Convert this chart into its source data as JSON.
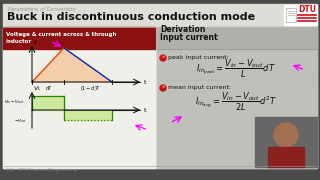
{
  "title": "Buck in discontinuous conduction mode",
  "subtitle": "Parameters of Converters",
  "outer_bg": "#4a4a4a",
  "slide_bg": "#deded8",
  "left_panel_bg": "#f0f0eb",
  "red_header_bg": "#8b1010",
  "red_header_text": "Voltage & current across & through\ninductor",
  "right_panel_bg": "#c0c0ba",
  "right_header_text": "Derivation",
  "right_subheader": "Input current",
  "peak_label": "peak input current:",
  "mean_label": "mean input current:",
  "peak_formula": "$I_{in_{peak}} = \\dfrac{V_{in}-V_{out}}{L}dT$",
  "mean_formula": "$I_{in_{avg}} = \\dfrac{V_{in}-V_{out}}{2L}d^2T$",
  "dtu_color": "#c8102e",
  "arrow_color": "#ff00ff",
  "footer_text": "311   DTU Electrical Engineering",
  "title_color": "#111111",
  "subtitle_color": "#999999"
}
